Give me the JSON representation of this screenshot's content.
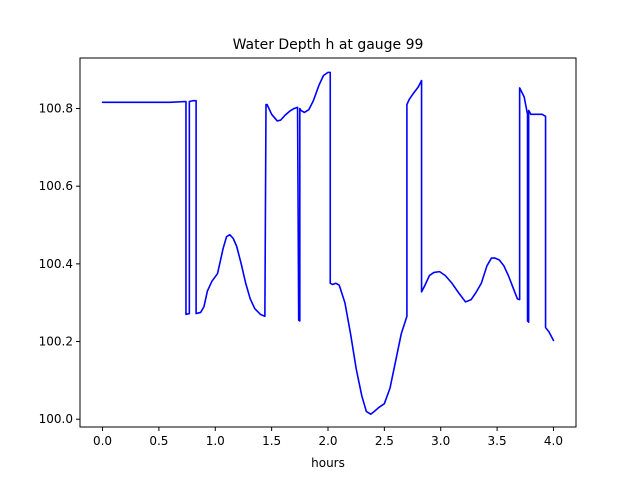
{
  "chart_data": {
    "type": "line",
    "title": "Water Depth h at gauge 99",
    "xlabel": "hours",
    "ylabel": "",
    "xlim": [
      -0.2,
      4.2
    ],
    "ylim": [
      99.98,
      100.93
    ],
    "x_ticks": [
      0.0,
      0.5,
      1.0,
      1.5,
      2.0,
      2.5,
      3.0,
      3.5,
      4.0
    ],
    "x_tick_labels": [
      "0.0",
      "0.5",
      "1.0",
      "1.5",
      "2.0",
      "2.5",
      "3.0",
      "3.5",
      "4.0"
    ],
    "y_ticks": [
      100.0,
      100.2,
      100.4,
      100.6,
      100.8
    ],
    "y_tick_labels": [
      "100.0",
      "100.2",
      "100.4",
      "100.6",
      "100.8"
    ],
    "grid": false,
    "series": [
      {
        "color": "#0000ff",
        "x": [
          0.0,
          0.3,
          0.6,
          0.74,
          0.74,
          0.77,
          0.77,
          0.8,
          0.83,
          0.83,
          0.87,
          0.9,
          0.93,
          0.97,
          1.02,
          1.07,
          1.1,
          1.13,
          1.16,
          1.19,
          1.23,
          1.27,
          1.31,
          1.35,
          1.4,
          1.44,
          1.45,
          1.46,
          1.5,
          1.55,
          1.58,
          1.62,
          1.66,
          1.7,
          1.73,
          1.74,
          1.75,
          1.75,
          1.76,
          1.79,
          1.83,
          1.87,
          1.92,
          1.96,
          2.0,
          2.02,
          2.02,
          2.04,
          2.07,
          2.1,
          2.15,
          2.2,
          2.25,
          2.3,
          2.34,
          2.38,
          2.41,
          2.45,
          2.5,
          2.55,
          2.6,
          2.65,
          2.7,
          2.7,
          2.72,
          2.76,
          2.8,
          2.83,
          2.83,
          2.86,
          2.9,
          2.94,
          2.99,
          3.04,
          3.1,
          3.16,
          3.22,
          3.27,
          3.31,
          3.36,
          3.41,
          3.45,
          3.48,
          3.52,
          3.56,
          3.6,
          3.64,
          3.68,
          3.7,
          3.7,
          3.74,
          3.76,
          3.77,
          3.77,
          3.78,
          3.78,
          3.8,
          3.85,
          3.9,
          3.93,
          3.93,
          3.96,
          4.0
        ],
        "y": [
          100.816,
          100.816,
          100.816,
          100.818,
          100.27,
          100.272,
          100.818,
          100.82,
          100.82,
          100.272,
          100.275,
          100.29,
          100.33,
          100.355,
          100.375,
          100.44,
          100.47,
          100.475,
          100.465,
          100.445,
          100.4,
          100.35,
          100.31,
          100.285,
          100.27,
          100.265,
          100.81,
          100.81,
          100.785,
          100.768,
          100.77,
          100.783,
          100.793,
          100.8,
          100.803,
          100.255,
          100.253,
          100.8,
          100.795,
          100.79,
          100.797,
          100.82,
          100.86,
          100.885,
          100.893,
          100.893,
          100.35,
          100.347,
          100.35,
          100.345,
          100.3,
          100.22,
          100.13,
          100.06,
          100.02,
          100.013,
          100.02,
          100.03,
          100.04,
          100.08,
          100.15,
          100.22,
          100.265,
          100.81,
          100.823,
          100.84,
          100.855,
          100.872,
          100.328,
          100.345,
          100.37,
          100.378,
          100.38,
          100.37,
          100.35,
          100.325,
          100.302,
          100.308,
          100.325,
          100.35,
          100.395,
          100.415,
          100.415,
          100.41,
          100.395,
          100.37,
          100.34,
          100.31,
          100.308,
          100.853,
          100.83,
          100.8,
          100.785,
          100.253,
          100.25,
          100.795,
          100.785,
          100.785,
          100.785,
          100.78,
          100.236,
          100.225,
          100.203
        ]
      }
    ]
  }
}
